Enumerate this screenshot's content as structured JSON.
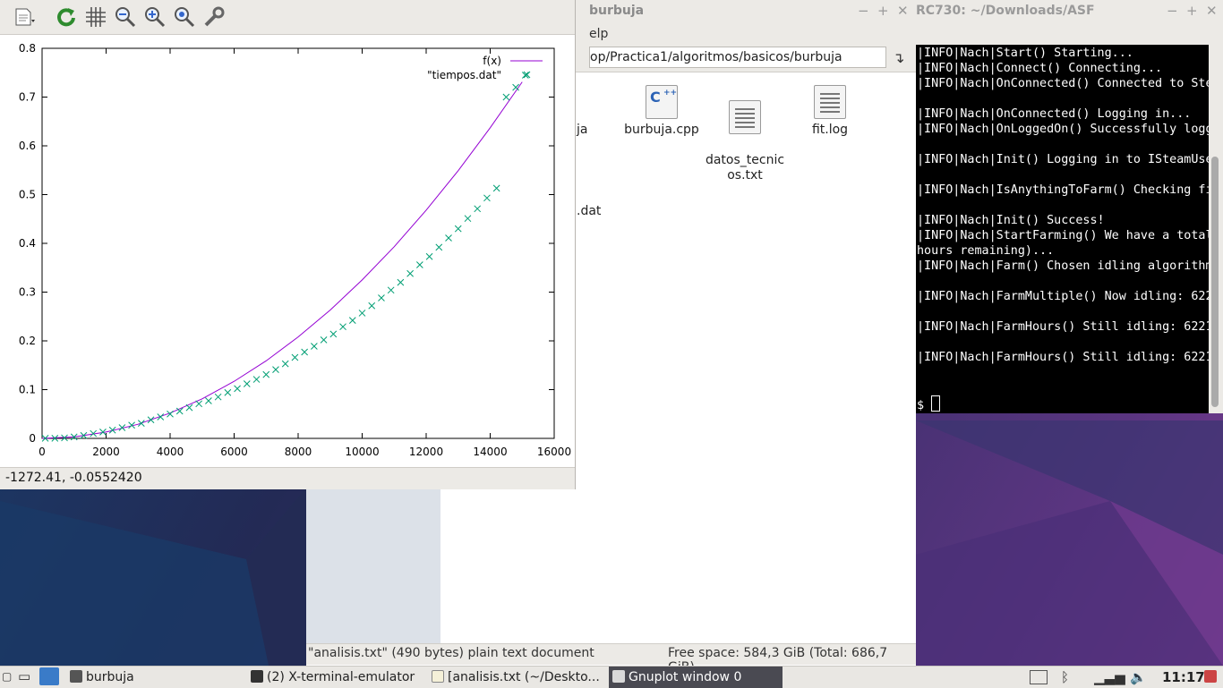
{
  "gnuplot": {
    "status_coords": "-1272.41, -0.0552420",
    "legend": [
      "f(x)",
      "\"tiempos.dat\""
    ],
    "toolbar_icons": [
      "copy-menu-icon",
      "replot-icon",
      "grid-icon",
      "zoom-prev-icon",
      "zoom-next-icon",
      "autoscale-icon",
      "config-icon"
    ]
  },
  "chart_data": {
    "type": "scatter",
    "title": "",
    "xlabel": "",
    "ylabel": "",
    "xlim": [
      0,
      16000
    ],
    "ylim": [
      0,
      0.8
    ],
    "x_ticks": [
      "0",
      "2000",
      "4000",
      "6000",
      "8000",
      "10000",
      "12000",
      "14000",
      "16000"
    ],
    "y_ticks": [
      "0",
      "0.1",
      "0.2",
      "0.3",
      "0.4",
      "0.5",
      "0.6",
      "0.7",
      "0.8"
    ],
    "grid": false,
    "legend_position": "top-right",
    "series": [
      {
        "name": "f(x)",
        "kind": "line",
        "color": "#9400d3",
        "x": [
          0,
          1000,
          2000,
          3000,
          4000,
          5000,
          6000,
          7000,
          8000,
          9000,
          10000,
          11000,
          12000,
          13000,
          14000,
          15000
        ],
        "y": [
          0,
          0.003,
          0.013,
          0.029,
          0.052,
          0.081,
          0.117,
          0.159,
          0.208,
          0.263,
          0.325,
          0.393,
          0.468,
          0.549,
          0.637,
          0.731
        ]
      },
      {
        "name": "\"tiempos.dat\"",
        "kind": "points",
        "color": "#009e73",
        "x": [
          100,
          400,
          700,
          1000,
          1300,
          1600,
          1900,
          2200,
          2500,
          2800,
          3100,
          3400,
          3700,
          4000,
          4300,
          4600,
          4900,
          5200,
          5500,
          5800,
          6100,
          6400,
          6700,
          7000,
          7300,
          7600,
          7900,
          8200,
          8500,
          8800,
          9100,
          9400,
          9700,
          10000,
          10300,
          10600,
          10900,
          11200,
          11500,
          11800,
          12100,
          12400,
          12700,
          13000,
          13300,
          13600,
          13900,
          14200,
          14500,
          14800,
          15100
        ],
        "y": [
          0.0002,
          0.0003,
          0.001,
          0.003,
          0.006,
          0.01,
          0.013,
          0.017,
          0.022,
          0.027,
          0.031,
          0.038,
          0.044,
          0.05,
          0.056,
          0.063,
          0.071,
          0.077,
          0.085,
          0.094,
          0.102,
          0.112,
          0.121,
          0.131,
          0.141,
          0.153,
          0.166,
          0.177,
          0.189,
          0.202,
          0.214,
          0.229,
          0.242,
          0.257,
          0.272,
          0.288,
          0.304,
          0.32,
          0.338,
          0.356,
          0.373,
          0.392,
          0.411,
          0.43,
          0.451,
          0.471,
          0.493,
          0.513,
          0.7,
          0.72,
          0.745
        ]
      }
    ]
  },
  "file_manager": {
    "title": "burbuja",
    "menu_help": "elp",
    "path": "op/Practica1/algoritmos/basicos/burbuja",
    "files": [
      {
        "name": "ja",
        "icon": "text-file-icon"
      },
      {
        "name": "burbuja.cpp",
        "icon": "cpp-file-icon"
      },
      {
        "name": "datos_tecnic\nos.txt",
        "icon": "text-file-icon"
      },
      {
        "name": "fit.log",
        "icon": "text-file-icon"
      },
      {
        "name": ".dat",
        "icon": "text-file-icon"
      }
    ],
    "status_left": "\"analisis.txt\" (490 bytes) plain text document",
    "status_right": "Free space: 584,3 GiB (Total: 686,7 GiB)"
  },
  "terminal": {
    "title": "RC730: ~/Downloads/ASF",
    "lines": [
      "|INFO|Nach|Start() Starting...",
      "|INFO|Nach|Connect() Connecting...",
      "|INFO|Nach|OnConnected() Connected to Ste",
      "",
      "|INFO|Nach|OnConnected() Logging in...",
      "|INFO|Nach|OnLoggedOn() Successfully logg",
      "",
      "|INFO|Nach|Init() Logging in to ISteamUse",
      "",
      "|INFO|Nach|IsAnythingToFarm() Checking fi",
      "",
      "|INFO|Nach|Init() Success!",
      "|INFO|Nach|StartFarming() We have a total",
      "hours remaining)...",
      "|INFO|Nach|Farm() Chosen idling algorithm",
      "",
      "|INFO|Nach|FarmMultiple() Now idling: 622",
      "",
      "|INFO|Nach|FarmHours() Still idling: 6221",
      "",
      "|INFO|Nach|FarmHours() Still idling: 6221",
      "",
      "",
      "$ "
    ]
  },
  "taskbar": {
    "items": [
      {
        "label": "burbuja",
        "icon": "folder-icon"
      },
      {
        "label": "(2) X-terminal-emulator",
        "icon": "terminal-icon"
      },
      {
        "label": "[analisis.txt (~/Deskto...",
        "icon": "text-editor-icon"
      },
      {
        "label": "Gnuplot window 0",
        "icon": "gnuplot-icon"
      }
    ],
    "clock": "11:17"
  }
}
